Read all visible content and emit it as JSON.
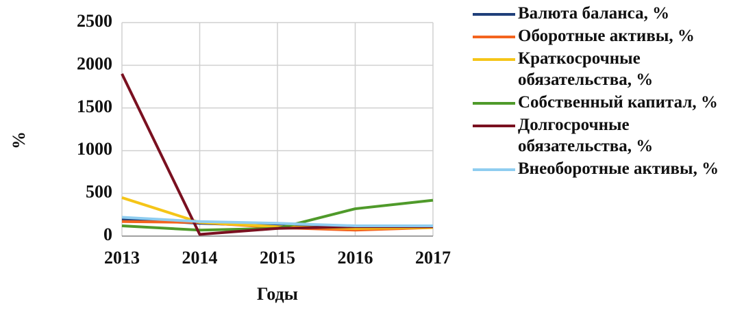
{
  "chart_data": {
    "type": "line",
    "xlabel": "Годы",
    "ylabel": "%",
    "categories": [
      "2013",
      "2014",
      "2015",
      "2016",
      "2017"
    ],
    "series": [
      {
        "name": "Валюта баланса, %",
        "color": "#1f3f7a",
        "values": [
          200,
          150,
          120,
          100,
          110
        ]
      },
      {
        "name": "Оборотные активы, %",
        "color": "#f4641e",
        "values": [
          170,
          160,
          100,
          70,
          100
        ]
      },
      {
        "name": "Краткосрочные обязательства, %",
        "color": "#f5c518",
        "values": [
          450,
          160,
          110,
          90,
          100
        ]
      },
      {
        "name": "Собственный капитал, %",
        "color": "#4f9a2a",
        "values": [
          120,
          70,
          90,
          320,
          420
        ]
      },
      {
        "name": "Долгосрочные обязательства, %",
        "color": "#7a1020",
        "values": [
          1900,
          20,
          90,
          110,
          110
        ]
      },
      {
        "name": "Внеоборотные активы, %",
        "color": "#8fcdf0",
        "values": [
          220,
          170,
          150,
          120,
          120
        ]
      }
    ],
    "ylim": [
      0,
      2500
    ],
    "yticks": [
      0,
      500,
      1000,
      1500,
      2000,
      2500
    ],
    "grid": true
  }
}
